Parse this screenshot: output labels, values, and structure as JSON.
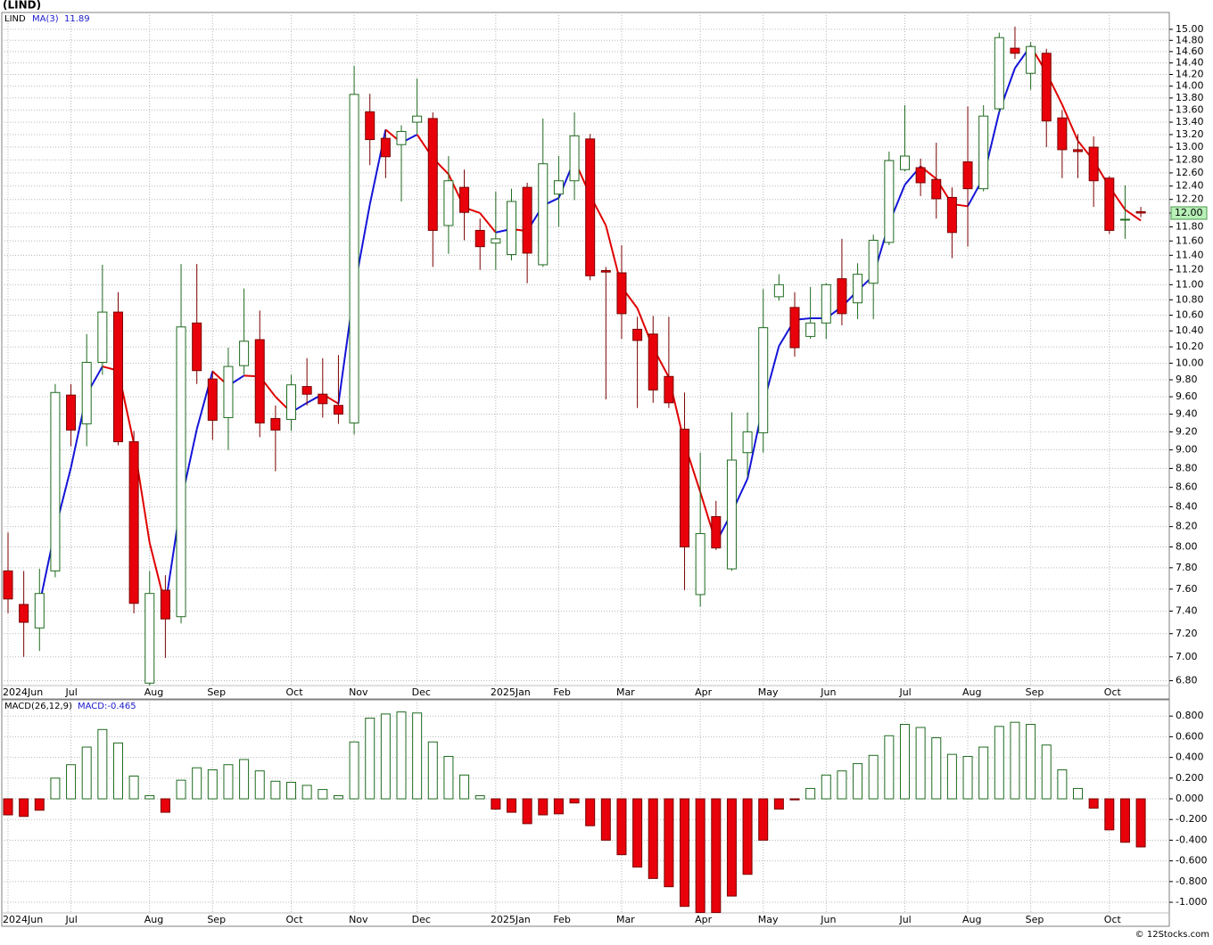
{
  "footer": "© 12Stocks.com",
  "chart_data": [
    {
      "type": "candlestick",
      "title": "(LIND)",
      "symbol": "LIND",
      "log_scale": true,
      "grid": true,
      "up_color": "#1f6b1f",
      "down_color": "#e8000b",
      "last_price_label": "12.00",
      "categories": [
        "2024Jun",
        null,
        null,
        null,
        "Jul",
        null,
        null,
        null,
        null,
        "Aug",
        null,
        null,
        null,
        "Sep",
        null,
        null,
        null,
        null,
        "Oct",
        null,
        null,
        null,
        "Nov",
        null,
        null,
        null,
        "Dec",
        null,
        null,
        null,
        null,
        "2025Jan",
        null,
        null,
        null,
        "Feb",
        null,
        null,
        null,
        "Mar",
        null,
        null,
        null,
        null,
        "Apr",
        null,
        null,
        null,
        "May",
        null,
        null,
        null,
        "Jun",
        null,
        null,
        null,
        null,
        "Jul",
        null,
        null,
        null,
        "Aug",
        null,
        null,
        null,
        "Sep",
        null,
        null,
        null,
        null,
        "Oct",
        null,
        null
      ],
      "open": [
        7.77,
        7.46,
        7.25,
        7.77,
        9.62,
        9.29,
        10.01,
        10.64,
        9.09,
        6.78,
        7.59,
        7.35,
        10.5,
        9.81,
        9.36,
        9.97,
        10.29,
        9.35,
        9.34,
        9.72,
        9.63,
        9.5,
        9.3,
        13.57,
        13.14,
        13.04,
        13.4,
        13.46,
        11.82,
        12.38,
        11.75,
        11.57,
        11.41,
        12.38,
        11.27,
        12.28,
        12.48,
        13.13,
        11.19,
        11.16,
        10.42,
        10.36,
        9.84,
        9.23,
        7.55,
        8.3,
        7.79,
        8.97,
        9.19,
        10.84,
        10.7,
        10.33,
        10.5,
        11.08,
        10.76,
        11.02,
        11.58,
        12.65,
        12.68,
        12.5,
        12.23,
        12.77,
        12.36,
        13.62,
        14.66,
        14.22,
        14.57,
        13.47,
        12.96,
        13.0,
        12.52,
        11.9,
        12.02
      ],
      "high": [
        8.14,
        7.77,
        7.79,
        9.75,
        9.75,
        10.36,
        11.27,
        10.9,
        9.21,
        7.77,
        7.73,
        11.28,
        11.28,
        9.91,
        10.19,
        10.95,
        10.66,
        9.5,
        9.86,
        10.06,
        10.06,
        10.1,
        14.35,
        13.87,
        13.28,
        13.35,
        14.13,
        13.56,
        12.86,
        12.65,
        11.92,
        12.32,
        12.36,
        12.45,
        13.46,
        12.86,
        13.56,
        13.21,
        11.24,
        11.54,
        10.58,
        10.59,
        10.58,
        9.65,
        8.97,
        8.46,
        9.42,
        9.42,
        10.94,
        11.14,
        10.9,
        10.97,
        11.02,
        11.63,
        11.29,
        11.69,
        12.93,
        13.68,
        12.82,
        13.07,
        12.38,
        13.66,
        13.68,
        14.94,
        15.05,
        14.77,
        14.65,
        13.6,
        13.21,
        13.17,
        12.55,
        12.41,
        12.09
      ],
      "low": [
        7.38,
        7.0,
        7.05,
        7.71,
        9.04,
        9.04,
        9.86,
        9.05,
        7.38,
        6.7,
        6.99,
        7.29,
        9.75,
        9.11,
        9.0,
        9.86,
        9.14,
        8.77,
        9.21,
        9.5,
        9.36,
        9.29,
        9.17,
        12.72,
        12.52,
        12.17,
        13.21,
        11.24,
        11.42,
        11.61,
        11.2,
        11.2,
        11.33,
        11.02,
        11.24,
        11.8,
        12.19,
        11.06,
        9.57,
        10.3,
        9.47,
        9.53,
        9.47,
        7.59,
        7.44,
        7.97,
        7.77,
        8.71,
        8.97,
        10.79,
        10.08,
        10.3,
        10.3,
        10.47,
        10.55,
        10.55,
        11.54,
        12.62,
        12.25,
        11.92,
        11.36,
        11.52,
        12.32,
        13.57,
        14.47,
        13.94,
        13.0,
        12.52,
        12.52,
        12.09,
        11.7,
        11.63,
        11.94
      ],
      "close": [
        7.51,
        7.3,
        7.56,
        9.65,
        9.22,
        10.01,
        10.64,
        9.09,
        7.47,
        7.56,
        7.33,
        10.45,
        9.91,
        9.33,
        9.96,
        10.27,
        9.3,
        9.22,
        9.74,
        9.63,
        9.52,
        9.4,
        13.86,
        13.12,
        12.85,
        13.25,
        13.5,
        11.75,
        12.48,
        12.01,
        11.52,
        11.63,
        12.17,
        11.43,
        12.74,
        12.48,
        13.18,
        11.12,
        11.17,
        10.62,
        10.28,
        9.68,
        9.53,
        8.0,
        8.13,
        7.99,
        8.89,
        9.2,
        10.44,
        11.0,
        10.19,
        10.5,
        11.0,
        10.62,
        11.14,
        11.61,
        12.79,
        12.86,
        12.45,
        12.21,
        11.72,
        12.36,
        13.5,
        14.85,
        14.57,
        14.69,
        13.42,
        12.96,
        12.93,
        12.48,
        11.75,
        11.91,
        12.0
      ],
      "ma": {
        "name": "MA(3)",
        "value_label": "11.89",
        "color": "#1a1acc",
        "up_color": "#1414d8",
        "down_color": "#e00000",
        "values": [
          null,
          null,
          7.46,
          8.17,
          8.81,
          9.63,
          9.96,
          9.91,
          9.07,
          8.04,
          7.45,
          8.45,
          9.23,
          9.9,
          9.73,
          9.85,
          9.84,
          9.6,
          9.42,
          9.53,
          9.63,
          9.52,
          10.93,
          12.13,
          13.28,
          13.07,
          13.2,
          12.83,
          12.58,
          12.08,
          12.0,
          11.72,
          11.77,
          11.74,
          12.11,
          12.22,
          12.8,
          12.26,
          11.82,
          10.97,
          10.69,
          10.19,
          9.83,
          9.07,
          8.55,
          8.04,
          8.34,
          8.69,
          9.51,
          10.21,
          10.54,
          10.56,
          10.56,
          10.71,
          10.92,
          11.12,
          11.85,
          12.42,
          12.7,
          12.51,
          12.13,
          12.1,
          12.53,
          13.57,
          14.31,
          14.7,
          14.23,
          13.69,
          13.1,
          12.79,
          12.39,
          12.05,
          11.89
        ]
      },
      "ylim": [
        6.76,
        15.31
      ],
      "yticks": [
        {
          "value": 6.8,
          "label": "6.80"
        },
        {
          "value": 7,
          "label": "7.00"
        },
        {
          "value": 7.2,
          "label": "7.20"
        },
        {
          "value": 7.4,
          "label": "7.40"
        },
        {
          "value": 7.6,
          "label": "7.60"
        },
        {
          "value": 7.8,
          "label": "7.80"
        },
        {
          "value": 8,
          "label": "8.00"
        },
        {
          "value": 8.2,
          "label": "8.20"
        },
        {
          "value": 8.4,
          "label": "8.40"
        },
        {
          "value": 8.6,
          "label": "8.60"
        },
        {
          "value": 8.8,
          "label": "8.80"
        },
        {
          "value": 9,
          "label": "9.00"
        },
        {
          "value": 9.2,
          "label": "9.20"
        },
        {
          "value": 9.4,
          "label": "9.40"
        },
        {
          "value": 9.6,
          "label": "9.60"
        },
        {
          "value": 9.8,
          "label": "9.80"
        },
        {
          "value": 10,
          "label": "10.00"
        },
        {
          "value": 10.2,
          "label": "10.20"
        },
        {
          "value": 10.4,
          "label": "10.40"
        },
        {
          "value": 10.6,
          "label": "10.60"
        },
        {
          "value": 10.8,
          "label": "10.80"
        },
        {
          "value": 11,
          "label": "11.00"
        },
        {
          "value": 11.2,
          "label": "11.20"
        },
        {
          "value": 11.4,
          "label": "11.40"
        },
        {
          "value": 11.6,
          "label": "11.60"
        },
        {
          "value": 11.8,
          "label": "11.80"
        },
        {
          "value": 12,
          "label": "12.00"
        },
        {
          "value": 12.2,
          "label": "12.20"
        },
        {
          "value": 12.4,
          "label": "12.40"
        },
        {
          "value": 12.6,
          "label": "12.60"
        },
        {
          "value": 12.8,
          "label": "12.80"
        },
        {
          "value": 13,
          "label": "13.00"
        },
        {
          "value": 13.2,
          "label": "13.20"
        },
        {
          "value": 13.4,
          "label": "13.40"
        },
        {
          "value": 13.6,
          "label": "13.60"
        },
        {
          "value": 13.8,
          "label": "13.80"
        },
        {
          "value": 14,
          "label": "14.00"
        },
        {
          "value": 14.2,
          "label": "14.20"
        },
        {
          "value": 14.4,
          "label": "14.40"
        },
        {
          "value": 14.6,
          "label": "14.60"
        },
        {
          "value": 14.8,
          "label": "14.80"
        },
        {
          "value": 15,
          "label": "15.00"
        }
      ]
    },
    {
      "type": "histogram",
      "title": "MACD(26,12,9)",
      "grid": true,
      "series": [
        {
          "name": "MACD:-0.465",
          "color": "#1f6b1f",
          "negative_color": "#e8000b",
          "values": [
            -0.155,
            -0.17,
            -0.11,
            0.2,
            0.33,
            0.5,
            0.67,
            0.54,
            0.22,
            0.03,
            -0.13,
            0.18,
            0.3,
            0.28,
            0.33,
            0.38,
            0.27,
            0.17,
            0.16,
            0.13,
            0.09,
            0.03,
            0.55,
            0.78,
            0.82,
            0.84,
            0.83,
            0.55,
            0.41,
            0.23,
            0.03,
            -0.1,
            -0.13,
            -0.24,
            -0.155,
            -0.145,
            -0.04,
            -0.26,
            -0.4,
            -0.54,
            -0.66,
            -0.77,
            -0.85,
            -1.04,
            -1.1,
            -1.1,
            -0.94,
            -0.73,
            -0.4,
            -0.1,
            -0.01,
            0.1,
            0.23,
            0.27,
            0.34,
            0.42,
            0.61,
            0.72,
            0.69,
            0.59,
            0.43,
            0.41,
            0.5,
            0.7,
            0.74,
            0.72,
            0.52,
            0.28,
            0.1,
            -0.09,
            -0.3,
            -0.42,
            -0.465
          ]
        }
      ],
      "categories": [
        "2024Jun",
        null,
        null,
        null,
        "Jul",
        null,
        null,
        null,
        null,
        "Aug",
        null,
        null,
        null,
        "Sep",
        null,
        null,
        null,
        null,
        "Oct",
        null,
        null,
        null,
        "Nov",
        null,
        null,
        null,
        "Dec",
        null,
        null,
        null,
        null,
        "2025Jan",
        null,
        null,
        null,
        "Feb",
        null,
        null,
        null,
        "Mar",
        null,
        null,
        null,
        null,
        "Apr",
        null,
        null,
        null,
        "May",
        null,
        null,
        null,
        "Jun",
        null,
        null,
        null,
        null,
        "Jul",
        null,
        null,
        null,
        "Aug",
        null,
        null,
        null,
        "Sep",
        null,
        null,
        null,
        null,
        "Oct",
        null,
        null
      ],
      "ylim": [
        -1.103,
        0.957
      ],
      "yticks": [
        {
          "value": -1,
          "label": "-1.000"
        },
        {
          "value": -0.8,
          "label": "-0.800"
        },
        {
          "value": -0.6,
          "label": "-0.600"
        },
        {
          "value": -0.4,
          "label": "-0.400"
        },
        {
          "value": -0.2,
          "label": "-0.200"
        },
        {
          "value": 0,
          "label": "0.000"
        },
        {
          "value": 0.2,
          "label": "0.200"
        },
        {
          "value": 0.4,
          "label": "0.400"
        },
        {
          "value": 0.6,
          "label": "0.600"
        },
        {
          "value": 0.8,
          "label": "0.800"
        }
      ]
    }
  ]
}
